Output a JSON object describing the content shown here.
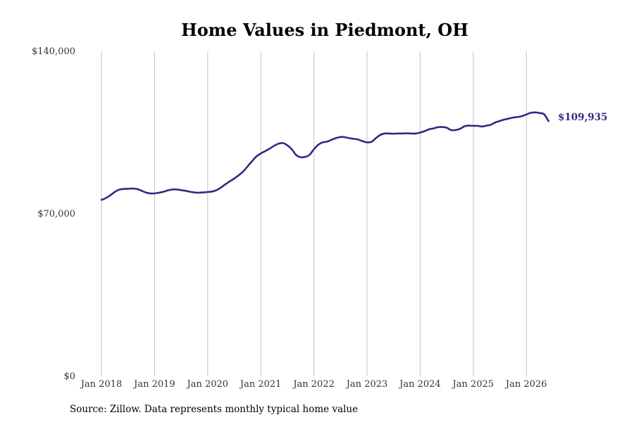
{
  "chart_data": {
    "type": "line",
    "title": "Home Values in Piedmont, OH",
    "xlabel": "",
    "ylabel": "",
    "x_ticks": [
      "Jan 2018",
      "Jan 2019",
      "Jan 2020",
      "Jan 2021",
      "Jan 2022",
      "Jan 2023",
      "Jan 2024",
      "Jan 2025",
      "Jan 2026"
    ],
    "y_ticks": [
      "$0",
      "$70,000",
      "$140,000"
    ],
    "ylim": [
      0,
      140000
    ],
    "xlim": [
      "2018-01",
      "2026-06"
    ],
    "grid": "vertical",
    "line_color": "#2e2a85",
    "end_label": "$109,935",
    "series": [
      {
        "x": [
          "2018-01",
          "2018-02",
          "2018-03",
          "2018-04",
          "2018-05",
          "2018-06",
          "2018-07",
          "2018-08",
          "2018-09",
          "2018-10",
          "2018-11",
          "2018-12",
          "2019-01",
          "2019-02",
          "2019-03",
          "2019-04",
          "2019-05",
          "2019-06",
          "2019-07",
          "2019-08",
          "2019-09",
          "2019-10",
          "2019-11",
          "2019-12",
          "2020-01",
          "2020-02",
          "2020-03",
          "2020-04",
          "2020-05",
          "2020-06",
          "2020-07",
          "2020-08",
          "2020-09",
          "2020-10",
          "2020-11",
          "2020-12",
          "2021-01",
          "2021-02",
          "2021-03",
          "2021-04",
          "2021-05",
          "2021-06",
          "2021-07",
          "2021-08",
          "2021-09",
          "2021-10",
          "2021-11",
          "2021-12",
          "2022-01",
          "2022-02",
          "2022-03",
          "2022-04",
          "2022-05",
          "2022-06",
          "2022-07",
          "2022-08",
          "2022-09",
          "2022-10",
          "2022-11",
          "2022-12",
          "2023-01",
          "2023-02",
          "2023-03",
          "2023-04",
          "2023-05",
          "2023-06",
          "2023-07",
          "2023-08",
          "2023-09",
          "2023-10",
          "2023-11",
          "2023-12",
          "2024-01",
          "2024-02",
          "2024-03",
          "2024-04",
          "2024-05",
          "2024-06",
          "2024-07",
          "2024-08",
          "2024-09",
          "2024-10",
          "2024-11",
          "2024-12",
          "2025-01",
          "2025-02",
          "2025-03",
          "2025-04",
          "2025-05",
          "2025-06",
          "2025-07",
          "2025-08",
          "2025-09",
          "2025-10",
          "2025-11",
          "2025-12",
          "2026-01",
          "2026-02",
          "2026-03",
          "2026-04",
          "2026-05",
          "2026-06"
        ],
        "values": [
          76000,
          76800,
          78000,
          79400,
          80400,
          80700,
          80800,
          80900,
          80700,
          80000,
          79200,
          78800,
          78800,
          79100,
          79500,
          80100,
          80500,
          80500,
          80200,
          79900,
          79500,
          79200,
          79100,
          79200,
          79400,
          79600,
          80200,
          81300,
          82700,
          84000,
          85200,
          86600,
          88200,
          90400,
          92600,
          94700,
          96000,
          97000,
          98100,
          99300,
          100200,
          100500,
          99500,
          97800,
          95300,
          94400,
          94500,
          95400,
          97800,
          99800,
          100800,
          101100,
          101900,
          102600,
          103100,
          103000,
          102600,
          102300,
          102000,
          101300,
          100800,
          101000,
          102600,
          104000,
          104600,
          104600,
          104500,
          104600,
          104600,
          104700,
          104600,
          104600,
          105000,
          105600,
          106400,
          106800,
          107300,
          107400,
          107100,
          106100,
          106100,
          106600,
          107700,
          108000,
          107900,
          107900,
          107600,
          108000,
          108400,
          109400,
          110000,
          110600,
          111000,
          111500,
          111700,
          112100,
          112800,
          113500,
          113700,
          113400,
          112900,
          109935
        ]
      }
    ]
  },
  "footer": {
    "source": "Source: Zillow. Data represents monthly typical home value"
  }
}
